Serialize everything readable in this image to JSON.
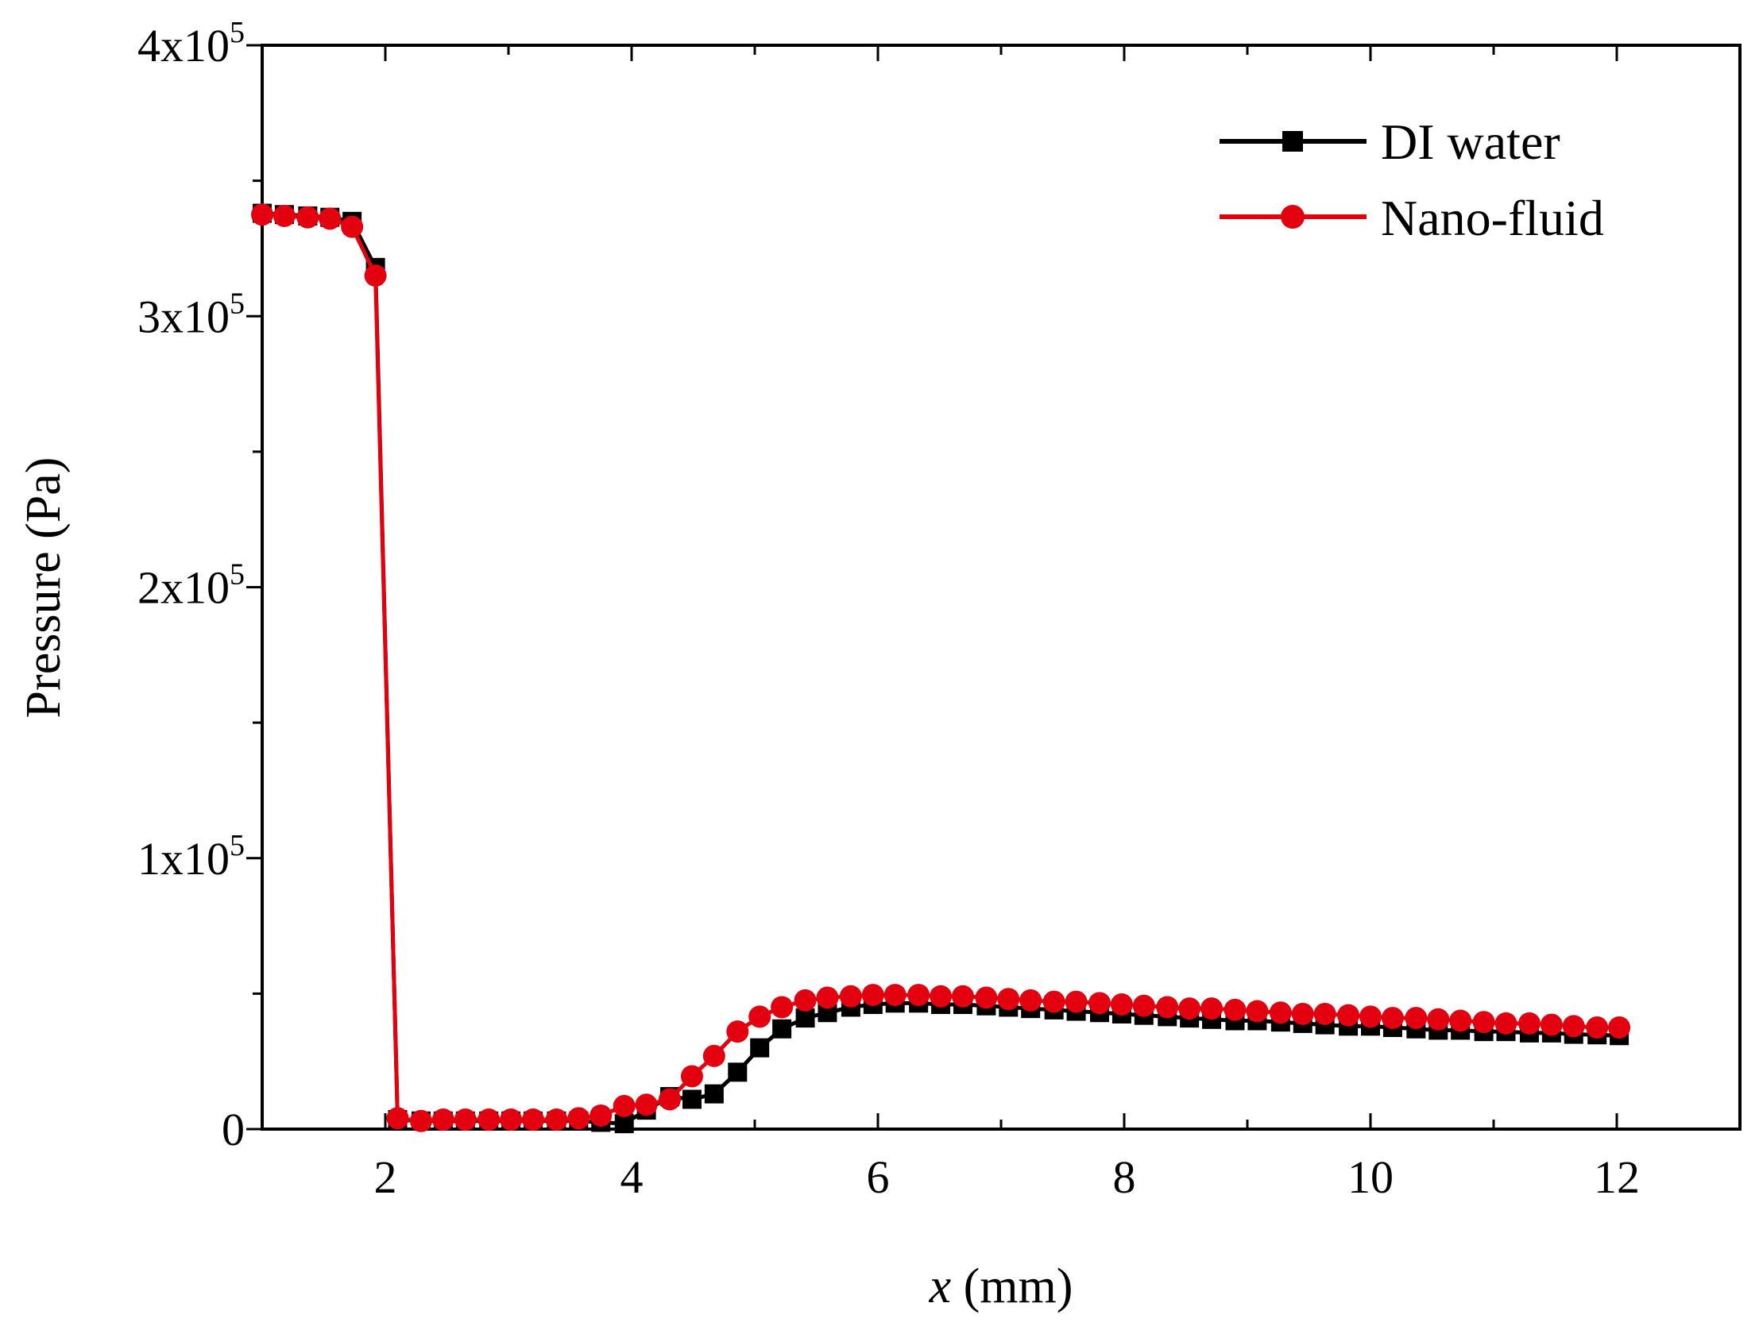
{
  "chart_data": {
    "type": "line",
    "title": "",
    "xlabel": {
      "var": "x",
      "unit": " (mm)"
    },
    "ylabel": "Pressure (Pa)",
    "xlim": [
      1,
      13
    ],
    "ylim": [
      0,
      400000
    ],
    "xticks": [
      2,
      4,
      6,
      8,
      10,
      12
    ],
    "xtick_labels": [
      "2",
      "4",
      "6",
      "8",
      "10",
      "12"
    ],
    "yticks": [
      {
        "value": 0,
        "mantissa": "0",
        "exp": ""
      },
      {
        "value": 100000,
        "mantissa": "1x10",
        "exp": "5"
      },
      {
        "value": 200000,
        "mantissa": "2x10",
        "exp": "5"
      },
      {
        "value": 300000,
        "mantissa": "3x10",
        "exp": "5"
      },
      {
        "value": 400000,
        "mantissa": "4x10",
        "exp": "5"
      }
    ],
    "legend_position": "top-right",
    "series": [
      {
        "name": "DI water",
        "color": "#000000",
        "marker": "square",
        "x": [
          1.0,
          1.18,
          1.37,
          1.55,
          1.73,
          1.92,
          2.1,
          2.29,
          2.47,
          2.65,
          2.84,
          3.02,
          3.2,
          3.39,
          3.57,
          3.75,
          3.94,
          4.12,
          4.31,
          4.49,
          4.67,
          4.86,
          5.04,
          5.22,
          5.41,
          5.59,
          5.78,
          5.96,
          6.14,
          6.33,
          6.51,
          6.69,
          6.88,
          7.06,
          7.24,
          7.43,
          7.61,
          7.8,
          7.98,
          8.16,
          8.35,
          8.53,
          8.71,
          8.9,
          9.08,
          9.27,
          9.45,
          9.63,
          9.82,
          10.0,
          10.18,
          10.37,
          10.55,
          10.73,
          10.92,
          11.1,
          11.29,
          11.47,
          11.65,
          11.84,
          12.02
        ],
        "y": [
          338000,
          337500,
          337000,
          336500,
          335000,
          318000,
          3500,
          3000,
          3000,
          3000,
          3000,
          3000,
          3000,
          3000,
          3000,
          2500,
          2000,
          7000,
          12000,
          11000,
          13000,
          21000,
          30000,
          37000,
          41000,
          43000,
          45000,
          46000,
          46500,
          46500,
          46000,
          46000,
          45500,
          45000,
          44500,
          44000,
          43500,
          43000,
          42500,
          42000,
          41500,
          41000,
          40500,
          40000,
          40000,
          39500,
          39000,
          38500,
          38000,
          38000,
          37500,
          37000,
          36500,
          36500,
          36000,
          36000,
          35500,
          35500,
          35000,
          34800,
          34500
        ]
      },
      {
        "name": "Nano-fluid",
        "color": "#e3000f",
        "marker": "circle",
        "x": [
          1.0,
          1.18,
          1.37,
          1.55,
          1.73,
          1.92,
          2.1,
          2.29,
          2.47,
          2.65,
          2.84,
          3.02,
          3.2,
          3.39,
          3.57,
          3.75,
          3.94,
          4.12,
          4.31,
          4.49,
          4.67,
          4.86,
          5.04,
          5.22,
          5.41,
          5.59,
          5.78,
          5.96,
          6.14,
          6.33,
          6.51,
          6.69,
          6.88,
          7.06,
          7.24,
          7.43,
          7.61,
          7.8,
          7.98,
          8.16,
          8.35,
          8.53,
          8.71,
          8.9,
          9.08,
          9.27,
          9.45,
          9.63,
          9.82,
          10.0,
          10.18,
          10.37,
          10.55,
          10.73,
          10.92,
          11.1,
          11.29,
          11.47,
          11.65,
          11.84,
          12.02
        ],
        "y": [
          337500,
          337000,
          336500,
          336000,
          333000,
          315000,
          4000,
          3000,
          3500,
          3500,
          3500,
          3500,
          3500,
          3500,
          4000,
          5000,
          8500,
          9000,
          11000,
          19500,
          27000,
          36000,
          41500,
          45000,
          47500,
          48500,
          49000,
          49500,
          49500,
          49500,
          49000,
          49000,
          48500,
          48000,
          47500,
          47000,
          47000,
          46500,
          46000,
          45500,
          45000,
          44500,
          44500,
          44000,
          43500,
          43000,
          42500,
          42500,
          42000,
          41500,
          41000,
          41000,
          40500,
          40000,
          39500,
          39000,
          39000,
          38500,
          38000,
          37500,
          37500
        ]
      }
    ]
  }
}
